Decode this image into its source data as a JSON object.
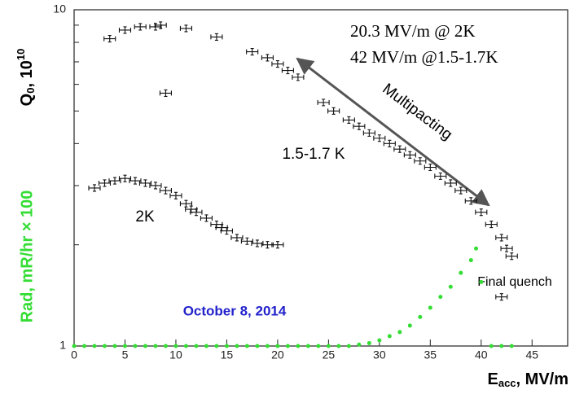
{
  "chart_data": {
    "type": "scatter",
    "xlim": [
      0,
      48.5
    ],
    "xticks": [
      0,
      5,
      10,
      15,
      20,
      25,
      30,
      35,
      40,
      45
    ],
    "ylim": [
      1,
      10
    ],
    "yticks": [
      1,
      10
    ],
    "yminor": [
      2,
      3,
      4,
      5,
      6,
      7,
      8,
      9
    ],
    "log_y": true,
    "x_label": {
      "main": "E",
      "sub": "acc",
      "rest": ", MV/m"
    },
    "y_label": {
      "main": "Q",
      "sub": "0",
      "rest": ", 10",
      "sup": "10"
    },
    "y2_label": "Rad, mR/hr × 100",
    "annotations": {
      "top_1": "20.3 MV/m @ 2K",
      "top_2": "42 MV/m @1.5-1.7K",
      "multipacting": "Multipacting",
      "low_temp": "1.5-1.7 K",
      "two_k": "2K",
      "quench": "Final quench",
      "date": "October 8, 2014"
    },
    "series": [
      {
        "color": "#111111",
        "marker": "errorbar",
        "x": [
          2,
          3,
          4,
          5,
          6,
          7,
          8,
          9,
          10,
          11,
          11.5,
          12,
          13,
          14,
          14.5,
          15,
          16,
          17,
          18,
          19,
          20
        ],
        "values": [
          2.95,
          3.05,
          3.1,
          3.15,
          3.1,
          3.05,
          3.0,
          2.9,
          2.8,
          2.65,
          2.55,
          2.5,
          2.4,
          2.3,
          2.25,
          2.2,
          2.1,
          2.05,
          2.02,
          2.0,
          2.0
        ]
      },
      {
        "color": "#111111",
        "marker": "errorbar",
        "x": [
          3.5,
          5,
          6.5,
          8,
          8.5,
          9,
          11,
          14,
          17.5,
          19,
          20,
          21,
          22,
          24.5,
          25.5,
          27,
          28,
          29,
          30,
          31,
          32,
          33,
          34,
          35,
          36,
          37,
          38,
          39,
          40,
          41,
          42,
          42.5,
          43,
          42
        ],
        "values": [
          8.2,
          8.7,
          8.9,
          8.9,
          9.0,
          5.65,
          8.8,
          8.3,
          7.5,
          7.2,
          6.9,
          6.6,
          6.3,
          5.3,
          5.0,
          4.7,
          4.5,
          4.3,
          4.15,
          4.0,
          3.85,
          3.7,
          3.55,
          3.4,
          3.2,
          3.05,
          2.9,
          2.7,
          2.5,
          2.3,
          2.1,
          1.95,
          1.85,
          1.4
        ]
      },
      {
        "color": "#33dd33",
        "marker": "dot",
        "x": [
          0,
          1,
          2,
          3,
          4,
          5,
          6,
          7,
          8,
          9,
          10,
          11,
          12,
          13,
          14,
          15,
          16,
          17,
          18,
          19,
          20,
          21,
          22,
          23,
          24,
          25,
          26,
          27,
          28,
          29,
          30,
          31,
          32,
          33,
          34,
          35,
          36,
          37,
          38,
          39,
          39.5,
          40,
          41,
          42,
          43
        ],
        "values": [
          1,
          1,
          1,
          1,
          1,
          1,
          1,
          1,
          1,
          1,
          1,
          1,
          1,
          1,
          1,
          1,
          1,
          1,
          1,
          1,
          1,
          1,
          1,
          1,
          1,
          1,
          1,
          1,
          1.01,
          1.02,
          1.04,
          1.07,
          1.1,
          1.15,
          1.22,
          1.3,
          1.4,
          1.5,
          1.65,
          1.8,
          1.95,
          1.55,
          1,
          1,
          1
        ]
      }
    ]
  }
}
